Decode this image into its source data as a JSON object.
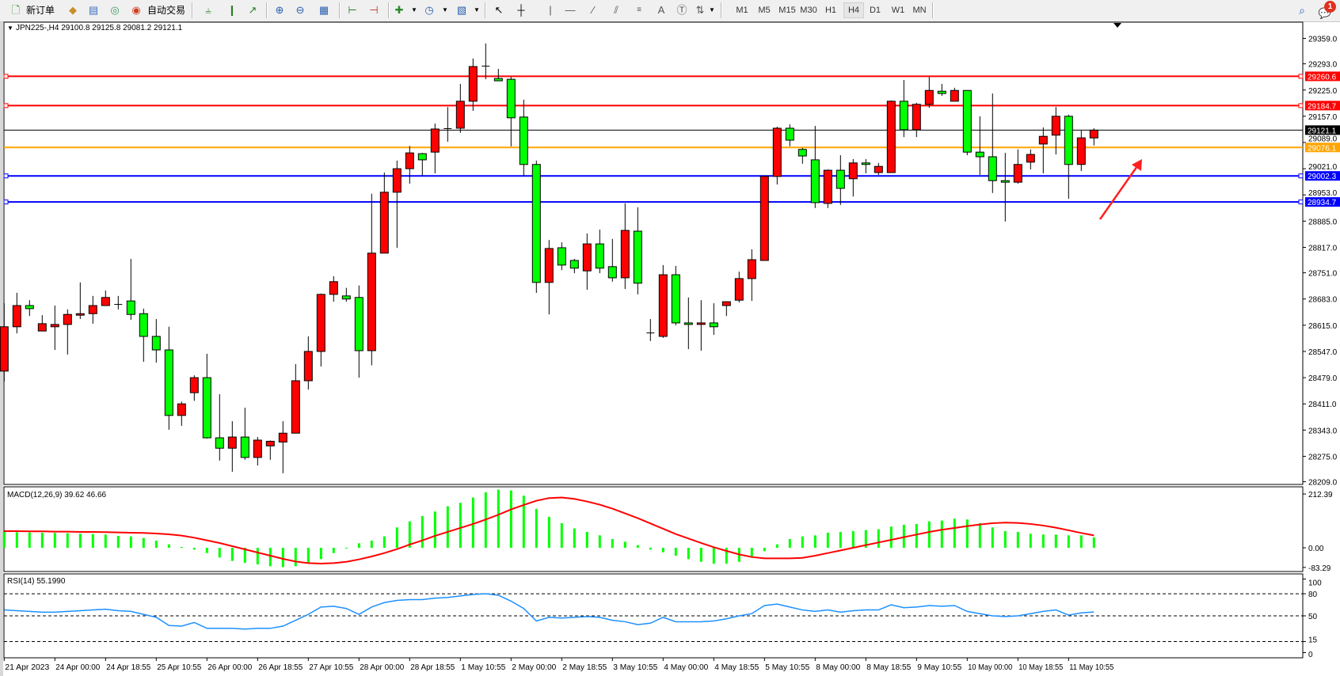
{
  "toolbar": {
    "new_order_label": "新订单",
    "auto_trading_label": "自动交易",
    "icons": [
      "new-order-icon",
      "market-watch-icon",
      "data-window-icon",
      "navigator-icon",
      "auto-trading-icon",
      "bar-chart-icon",
      "candlestick-icon",
      "line-chart-icon",
      "zoom-in-icon",
      "zoom-out-icon",
      "tile-windows-icon",
      "chart-shift-icon",
      "autoscroll-icon",
      "indicators-icon",
      "periods-icon",
      "templates-icon",
      "cursor-icon",
      "crosshair-icon",
      "vertical-line-icon",
      "horizontal-line-icon",
      "trendline-icon",
      "equidistant-channel-icon",
      "fibonacci-icon",
      "text-icon",
      "text-label-icon",
      "arrows-icon",
      "search-icon",
      "notification-icon"
    ],
    "timeframes": [
      "M1",
      "M5",
      "M15",
      "M30",
      "H1",
      "H4",
      "D1",
      "W1",
      "MN"
    ],
    "active_timeframe": "H4",
    "notification_count": "1"
  },
  "chart": {
    "header": "JPN225-,H4  29100.8 29125.8 29081.2 29121.1",
    "colors": {
      "bull": "#ff0000",
      "bear": "#00ff00",
      "outline": "#000000"
    }
  },
  "chart_data": [
    {
      "type": "candlestick",
      "symbol": "JPN225-",
      "timeframe": "H4",
      "ylim": [
        28202,
        29401
      ],
      "y_ticks": [
        "29359.0",
        "29293.0",
        "29225.0",
        "29157.0",
        "29089.0",
        "29021.0",
        "28953.0",
        "28885.0",
        "28817.0",
        "28751.0",
        "28683.0",
        "28615.0",
        "28547.0",
        "28479.0",
        "28411.0",
        "28343.0",
        "28275.0",
        "28209.0"
      ],
      "x_tick_labels": [
        "21 Apr 2023",
        "24 Apr 00:00",
        "24 Apr 18:55",
        "25 Apr 10:55",
        "26 Apr 00:00",
        "26 Apr 18:55",
        "27 Apr 10:55",
        "28 Apr 00:00",
        "28 Apr 18:55",
        "1 May 10:55",
        "2 May 00:00",
        "2 May 18:55",
        "3 May 10:55",
        "4 May 00:00",
        "4 May 18:55",
        "5 May 10:55",
        "8 May 00:00",
        "8 May 18:55",
        "9 May 10:55",
        "10 May 00:00",
        "10 May 18:55",
        "11 May 10:55"
      ],
      "ohlc": [
        [
          28496,
          28672,
          28469,
          28611
        ],
        [
          28611,
          28699,
          28594,
          28666
        ],
        [
          28666,
          28680,
          28639,
          28658
        ],
        [
          28600,
          28641,
          28600,
          28619
        ],
        [
          28611,
          28666,
          28551,
          28617
        ],
        [
          28617,
          28656,
          28539,
          28643
        ],
        [
          28641,
          28726,
          28631,
          28645
        ],
        [
          28645,
          28691,
          28619,
          28666
        ],
        [
          28666,
          28705,
          28666,
          28687
        ],
        [
          28668,
          28691,
          28656,
          28669
        ],
        [
          28678,
          28787,
          28629,
          28643
        ],
        [
          28645,
          28658,
          28520,
          28586
        ],
        [
          28586,
          28631,
          28518,
          28551
        ],
        [
          28551,
          28611,
          28344,
          28381
        ],
        [
          28381,
          28417,
          28354,
          28411
        ],
        [
          28440,
          28485,
          28419,
          28479
        ],
        [
          28479,
          28541,
          28321,
          28323
        ],
        [
          28323,
          28436,
          28264,
          28296
        ],
        [
          28296,
          28366,
          28235,
          28325
        ],
        [
          28325,
          28401,
          28266,
          28272
        ],
        [
          28272,
          28325,
          28251,
          28317
        ],
        [
          28302,
          28316,
          28266,
          28314
        ],
        [
          28312,
          28366,
          28231,
          28335
        ],
        [
          28335,
          28514,
          28335,
          28471
        ],
        [
          28471,
          28586,
          28448,
          28547
        ],
        [
          28547,
          28697,
          28508,
          28695
        ],
        [
          28695,
          28742,
          28676,
          28728
        ],
        [
          28691,
          28712,
          28676,
          28683
        ],
        [
          28687,
          28718,
          28479,
          28549
        ],
        [
          28549,
          28956,
          28511,
          28802
        ],
        [
          28802,
          29011,
          28802,
          28960
        ],
        [
          28960,
          29042,
          28816,
          29021
        ],
        [
          29021,
          29080,
          28982,
          29062
        ],
        [
          29060,
          29062,
          29003,
          29044
        ],
        [
          29064,
          29138,
          29009,
          29124
        ],
        [
          29124,
          29181,
          29091,
          29125
        ],
        [
          29126,
          29241,
          29114,
          29196
        ],
        [
          29196,
          29307,
          29171,
          29286
        ],
        [
          29286,
          29346,
          29253,
          29287
        ],
        [
          29255,
          29280,
          29249,
          29249
        ],
        [
          29253,
          29259,
          29079,
          29153
        ],
        [
          29155,
          29200,
          29001,
          29032
        ],
        [
          29032,
          29042,
          28699,
          28726
        ],
        [
          28726,
          28836,
          28643,
          28814
        ],
        [
          28816,
          28830,
          28758,
          28771
        ],
        [
          28783,
          28787,
          28750,
          28763
        ],
        [
          28756,
          28853,
          28707,
          28826
        ],
        [
          28826,
          28863,
          28750,
          28763
        ],
        [
          28767,
          28839,
          28728,
          28738
        ],
        [
          28738,
          28931,
          28709,
          28861
        ],
        [
          28859,
          28921,
          28695,
          28724
        ],
        [
          28594,
          28631,
          28574,
          28595
        ],
        [
          28586,
          28771,
          28582,
          28746
        ],
        [
          28746,
          28769,
          28615,
          28621
        ],
        [
          28621,
          28687,
          28553,
          28617
        ],
        [
          28617,
          28680,
          28549,
          28621
        ],
        [
          28621,
          28672,
          28590,
          28611
        ],
        [
          28666,
          28677,
          28639,
          28676
        ],
        [
          28680,
          28754,
          28674,
          28736
        ],
        [
          28736,
          28812,
          28678,
          28785
        ],
        [
          28783,
          29003,
          28783,
          29001
        ],
        [
          29001,
          29130,
          28980,
          29126
        ],
        [
          29126,
          29136,
          29079,
          29095
        ],
        [
          29071,
          29075,
          29034,
          29054
        ],
        [
          29044,
          29132,
          28919,
          28933
        ],
        [
          28931,
          29019,
          28919,
          29017
        ],
        [
          29017,
          29056,
          28927,
          28970
        ],
        [
          28995,
          29046,
          28949,
          29036
        ],
        [
          29036,
          29046,
          29009,
          29032
        ],
        [
          29011,
          29036,
          29005,
          29027
        ],
        [
          29011,
          29198,
          29011,
          29196
        ],
        [
          29196,
          29251,
          29103,
          29122
        ],
        [
          29122,
          29192,
          29103,
          29188
        ],
        [
          29188,
          29259,
          29179,
          29224
        ],
        [
          29222,
          29241,
          29210,
          29216
        ],
        [
          29196,
          29231,
          29196,
          29224
        ],
        [
          29224,
          29224,
          29056,
          29064
        ],
        [
          29064,
          29157,
          29005,
          29052
        ],
        [
          29052,
          29216,
          28958,
          28990
        ],
        [
          28990,
          29062,
          28884,
          28986
        ],
        [
          28986,
          29071,
          28982,
          29032
        ],
        [
          29038,
          29071,
          29019,
          29058
        ],
        [
          29085,
          29128,
          29009,
          29105
        ],
        [
          29108,
          29181,
          29058,
          29157
        ],
        [
          29157,
          29161,
          28943,
          29032
        ],
        [
          29032,
          29120,
          29015,
          29101
        ],
        [
          29100.8,
          29125.8,
          29081.2,
          29121.1
        ]
      ],
      "horizontal_lines": [
        {
          "price": "29260.6",
          "color": "#ff0000"
        },
        {
          "price": "29184.7",
          "color": "#ff0000"
        },
        {
          "price": "29121.1",
          "color": "#000000"
        },
        {
          "price": "29076.1",
          "color": "#ffa500"
        },
        {
          "price": "29002.3",
          "color": "#0000ff"
        },
        {
          "price": "28934.7",
          "color": "#0000ff"
        }
      ],
      "annotation": {
        "type": "arrow",
        "color": "#ff2020",
        "direction": "up-right"
      }
    },
    {
      "type": "bar+line",
      "title": "MACD(12,26,9) 39.62 46.66",
      "y_ticks": [
        "212.39",
        "0.00",
        "-83.29"
      ],
      "ylim": [
        -83.29,
        212.39
      ],
      "histogram_color": "#00ff00",
      "signal_color": "#ff0000",
      "macd": [
        60,
        59,
        58,
        57,
        56,
        55,
        53,
        52,
        50,
        45,
        43,
        37,
        27,
        13,
        3,
        -7,
        -20,
        -37,
        -50,
        -57,
        -63,
        -70,
        -73,
        -70,
        -60,
        -43,
        -20,
        -3,
        17,
        27,
        43,
        77,
        100,
        120,
        137,
        157,
        170,
        190,
        210,
        220,
        217,
        197,
        147,
        117,
        93,
        73,
        60,
        47,
        33,
        23,
        10,
        -7,
        -17,
        -30,
        -43,
        -53,
        -60,
        -60,
        -53,
        -37,
        -13,
        13,
        33,
        43,
        47,
        57,
        60,
        63,
        67,
        70,
        80,
        87,
        90,
        100,
        103,
        110,
        107,
        93,
        77,
        63,
        60,
        53,
        50,
        50,
        47,
        47,
        39.62
      ],
      "signal": [
        63,
        63,
        62,
        62,
        61,
        61,
        60,
        60,
        59,
        58,
        57,
        56,
        54,
        51,
        46,
        38,
        28,
        18,
        6,
        -6,
        -18,
        -30,
        -42,
        -52,
        -58,
        -60,
        -58,
        -53,
        -44,
        -33,
        -20,
        -5,
        12,
        28,
        45,
        60,
        75,
        90,
        107,
        125,
        145,
        162,
        178,
        188,
        190,
        185,
        175,
        163,
        148,
        130,
        112,
        92,
        72,
        52,
        35,
        18,
        2,
        -12,
        -25,
        -35,
        -40,
        -40,
        -40,
        -38,
        -30,
        -20,
        -10,
        0,
        10,
        20,
        30,
        40,
        50,
        60,
        68,
        75,
        82,
        88,
        93,
        95,
        94,
        90,
        84,
        76,
        66,
        56,
        46.66
      ]
    },
    {
      "type": "line",
      "title": "RSI(14) 55.1990",
      "y_ticks": [
        "100",
        "80",
        "50",
        "15",
        "0"
      ],
      "levels": [
        80,
        50,
        15
      ],
      "ylim": [
        0,
        100
      ],
      "color": "#1e90ff",
      "values": [
        58,
        57,
        56,
        55,
        55,
        56,
        57,
        58,
        59,
        57,
        56,
        52,
        48,
        37,
        36,
        41,
        33,
        33,
        33,
        32,
        33,
        33,
        36,
        44,
        52,
        62,
        63,
        60,
        52,
        62,
        68,
        71,
        72,
        72,
        74,
        75,
        77,
        79,
        80,
        78,
        70,
        60,
        43,
        48,
        47,
        48,
        49,
        48,
        44,
        42,
        38,
        40,
        48,
        42,
        42,
        42,
        43,
        46,
        50,
        53,
        64,
        66,
        62,
        58,
        56,
        58,
        55,
        57,
        58,
        58,
        65,
        61,
        62,
        64,
        63,
        64,
        56,
        53,
        50,
        49,
        50,
        53,
        56,
        58,
        51,
        54,
        55.199
      ]
    }
  ]
}
